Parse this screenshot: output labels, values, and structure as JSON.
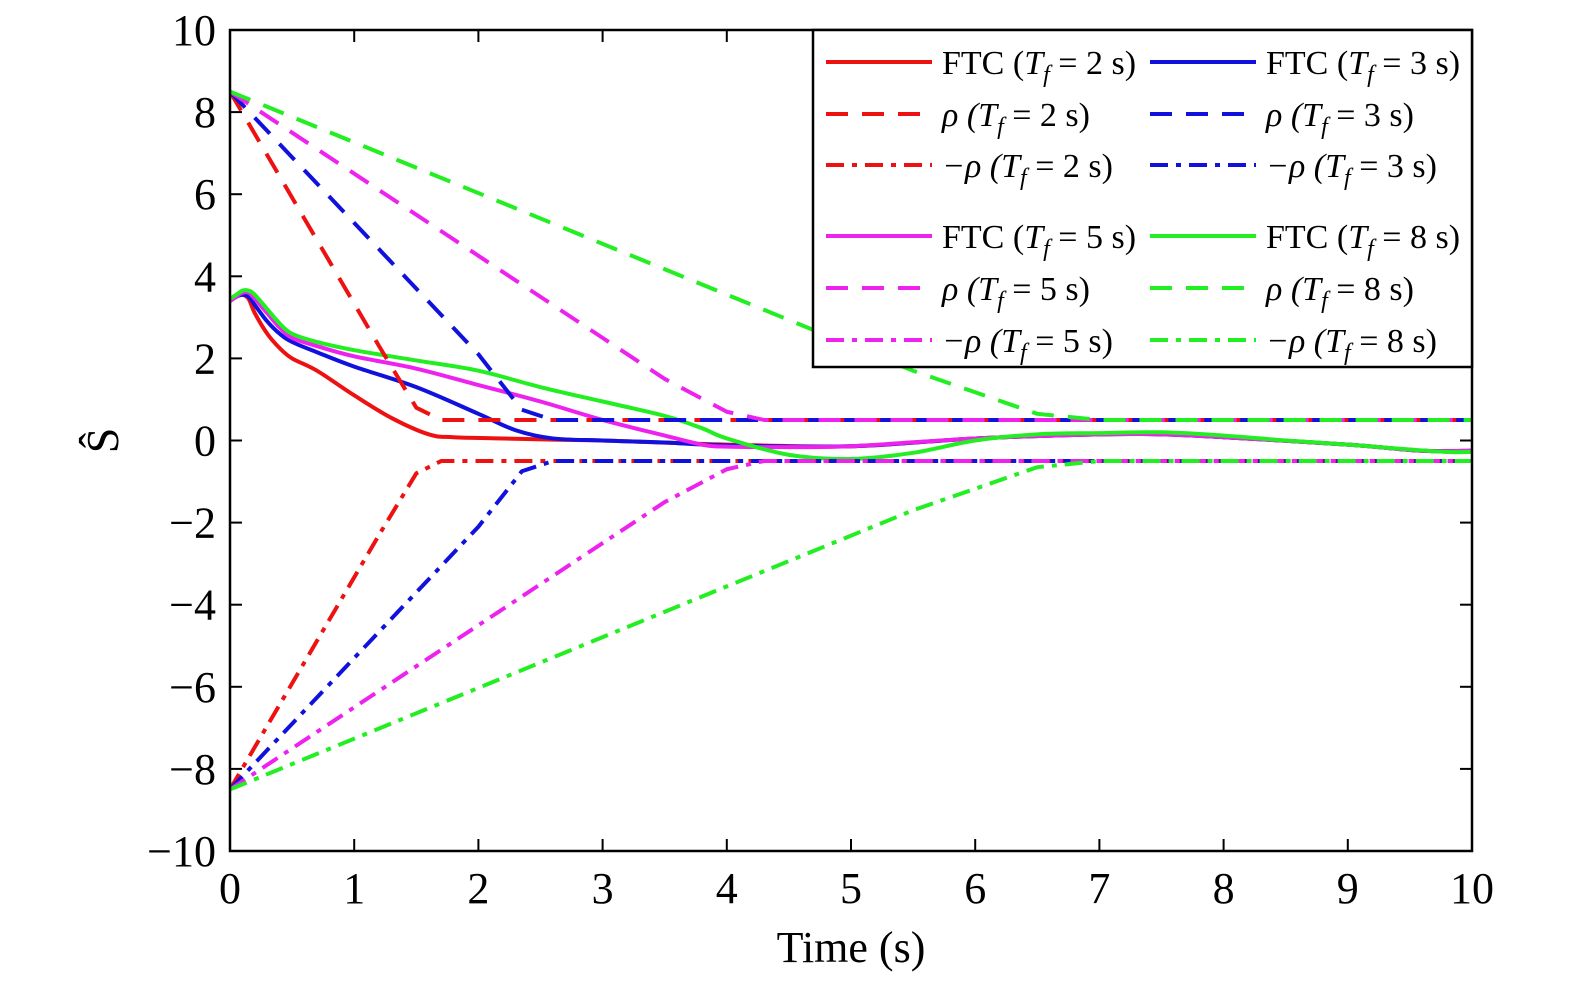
{
  "chart_data": {
    "type": "line",
    "xlabel": "Time (s)",
    "ylabel": "Ŝ",
    "xlim": [
      0,
      10
    ],
    "ylim": [
      -10,
      10
    ],
    "x_ticks": [
      0,
      1,
      2,
      3,
      4,
      5,
      6,
      7,
      8,
      9,
      10
    ],
    "y_ticks": [
      10,
      8,
      6,
      4,
      2,
      0,
      -2,
      -4,
      -6,
      -8,
      -10
    ],
    "x_tick_labels": [
      "0",
      "1",
      "2",
      "3",
      "4",
      "5",
      "6",
      "7",
      "8",
      "9",
      "10"
    ],
    "y_tick_labels": [
      "10",
      "8",
      "6",
      "4",
      "2",
      "0",
      "−2",
      "−4",
      "−6",
      "−8",
      "−10"
    ],
    "grid": false,
    "legend_position": "top-right",
    "series": [
      {
        "name": "FTC (Tf = 2 s)",
        "legend": {
          "symbol": "FTC",
          "tf": "2 s"
        },
        "color": "#ee1111",
        "style": "solid",
        "x": [
          0,
          0.05,
          0.1,
          0.15,
          0.2,
          0.3,
          0.4,
          0.5,
          0.7,
          1.0,
          1.3,
          1.6,
          1.8,
          2.2,
          2.6,
          3.0,
          4.0,
          5.0,
          6.0,
          7.0,
          7.5,
          8.0,
          9.0,
          9.6,
          10.0
        ],
        "y": [
          3.4,
          3.5,
          3.55,
          3.45,
          3.1,
          2.6,
          2.25,
          2.0,
          1.7,
          1.1,
          0.55,
          0.15,
          0.08,
          0.05,
          0.02,
          0.0,
          -0.1,
          -0.14,
          0.05,
          0.15,
          0.15,
          0.08,
          -0.1,
          -0.25,
          -0.25
        ]
      },
      {
        "name": "FTC (Tf = 3 s)",
        "legend": {
          "symbol": "FTC",
          "tf": "3 s"
        },
        "color": "#1111dd",
        "style": "solid",
        "x": [
          0,
          0.05,
          0.1,
          0.15,
          0.2,
          0.3,
          0.4,
          0.5,
          0.7,
          1.0,
          1.5,
          2.0,
          2.3,
          2.6,
          3.0,
          3.5,
          4.0,
          5.0,
          6.0,
          7.0,
          7.5,
          8.0,
          9.0,
          9.6,
          10.0
        ],
        "y": [
          3.4,
          3.5,
          3.55,
          3.5,
          3.3,
          2.9,
          2.6,
          2.4,
          2.15,
          1.8,
          1.3,
          0.65,
          0.25,
          0.05,
          0.0,
          -0.05,
          -0.12,
          -0.14,
          0.05,
          0.15,
          0.15,
          0.08,
          -0.1,
          -0.25,
          -0.25
        ]
      },
      {
        "name": "FTC (Tf = 5 s)",
        "legend": {
          "symbol": "FTC",
          "tf": "5 s"
        },
        "color": "#ee22ee",
        "style": "solid",
        "x": [
          0,
          0.05,
          0.1,
          0.15,
          0.2,
          0.3,
          0.4,
          0.5,
          0.7,
          1.0,
          1.5,
          2.0,
          2.5,
          3.0,
          3.5,
          3.8,
          4.0,
          4.5,
          5.0,
          6.0,
          7.0,
          7.5,
          8.0,
          9.0,
          9.6,
          10.0
        ],
        "y": [
          3.4,
          3.5,
          3.6,
          3.6,
          3.45,
          3.1,
          2.75,
          2.5,
          2.3,
          2.05,
          1.75,
          1.35,
          0.95,
          0.5,
          0.12,
          -0.1,
          -0.15,
          -0.16,
          -0.14,
          0.05,
          0.15,
          0.15,
          0.08,
          -0.1,
          -0.25,
          -0.25
        ]
      },
      {
        "name": "FTC (Tf = 8 s)",
        "legend": {
          "symbol": "FTC",
          "tf": "8 s"
        },
        "color": "#22ee22",
        "style": "solid",
        "x": [
          0,
          0.05,
          0.1,
          0.15,
          0.2,
          0.3,
          0.4,
          0.5,
          0.7,
          1.0,
          1.5,
          2.0,
          2.5,
          3.0,
          3.5,
          3.8,
          4.0,
          4.5,
          5.0,
          5.5,
          6.0,
          6.5,
          7.0,
          7.5,
          8.0,
          8.5,
          9.0,
          9.5,
          9.8,
          10.0
        ],
        "y": [
          3.45,
          3.55,
          3.65,
          3.65,
          3.55,
          3.2,
          2.85,
          2.6,
          2.4,
          2.2,
          1.95,
          1.7,
          1.3,
          0.95,
          0.6,
          0.3,
          0.05,
          -0.35,
          -0.45,
          -0.3,
          0.0,
          0.15,
          0.18,
          0.2,
          0.12,
          0.0,
          -0.1,
          -0.22,
          -0.28,
          -0.28
        ]
      },
      {
        "name": "ρ (Tf = 2 s)",
        "legend": {
          "symbol": "ρ",
          "tf": "2 s"
        },
        "color": "#ee1111",
        "style": "dashed",
        "x": [
          0,
          1.2,
          1.5,
          1.7,
          10
        ],
        "y": [
          8.5,
          2.3,
          0.8,
          0.5,
          0.5
        ]
      },
      {
        "name": "ρ (Tf = 3 s)",
        "legend": {
          "symbol": "ρ",
          "tf": "3 s"
        },
        "color": "#1111dd",
        "style": "dashed",
        "x": [
          0,
          2.0,
          2.35,
          2.6,
          10
        ],
        "y": [
          8.5,
          2.1,
          0.75,
          0.5,
          0.5
        ]
      },
      {
        "name": "ρ (Tf = 5 s)",
        "legend": {
          "symbol": "ρ",
          "tf": "5 s"
        },
        "color": "#ee22ee",
        "style": "dashed",
        "x": [
          0,
          3.5,
          4.0,
          4.3,
          10
        ],
        "y": [
          8.5,
          1.5,
          0.7,
          0.5,
          0.5
        ]
      },
      {
        "name": "ρ (Tf = 8 s)",
        "legend": {
          "symbol": "ρ",
          "tf": "8 s"
        },
        "color": "#22ee22",
        "style": "dashed",
        "x": [
          0,
          5.5,
          6.5,
          7.0,
          10
        ],
        "y": [
          8.5,
          1.7,
          0.65,
          0.5,
          0.5
        ]
      },
      {
        "name": "−ρ (Tf = 2 s)",
        "legend": {
          "symbol": "−ρ",
          "tf": "2 s"
        },
        "color": "#ee1111",
        "style": "dashdot",
        "x": [
          0,
          1.2,
          1.5,
          1.7,
          10
        ],
        "y": [
          -8.5,
          -2.3,
          -0.8,
          -0.5,
          -0.5
        ]
      },
      {
        "name": "−ρ (Tf = 3 s)",
        "legend": {
          "symbol": "−ρ",
          "tf": "3 s"
        },
        "color": "#1111dd",
        "style": "dashdot",
        "x": [
          0,
          2.0,
          2.35,
          2.6,
          10
        ],
        "y": [
          -8.5,
          -2.1,
          -0.75,
          -0.5,
          -0.5
        ]
      },
      {
        "name": "−ρ (Tf = 5 s)",
        "legend": {
          "symbol": "−ρ",
          "tf": "5 s"
        },
        "color": "#ee22ee",
        "style": "dashdot",
        "x": [
          0,
          3.5,
          4.0,
          4.3,
          10
        ],
        "y": [
          -8.5,
          -1.5,
          -0.7,
          -0.5,
          -0.5
        ]
      },
      {
        "name": "−ρ (Tf = 8 s)",
        "legend": {
          "symbol": "−ρ",
          "tf": "8 s"
        },
        "color": "#22ee22",
        "style": "dashdot",
        "x": [
          0,
          5.5,
          6.5,
          7.0,
          10
        ],
        "y": [
          -8.5,
          -1.7,
          -0.65,
          -0.5,
          -0.5
        ]
      }
    ],
    "legend_order": [
      [
        "FTC (Tf = 2 s)",
        "FTC (Tf = 3 s)"
      ],
      [
        "ρ (Tf = 2 s)",
        "ρ (Tf = 3 s)"
      ],
      [
        "−ρ (Tf = 2 s)",
        "−ρ (Tf = 3 s)"
      ],
      [
        "FTC (Tf = 5 s)",
        "FTC (Tf = 8 s)"
      ],
      [
        "ρ (Tf = 5 s)",
        "ρ (Tf = 8 s)"
      ],
      [
        "−ρ (Tf = 5 s)",
        "−ρ (Tf = 8 s)"
      ]
    ]
  }
}
